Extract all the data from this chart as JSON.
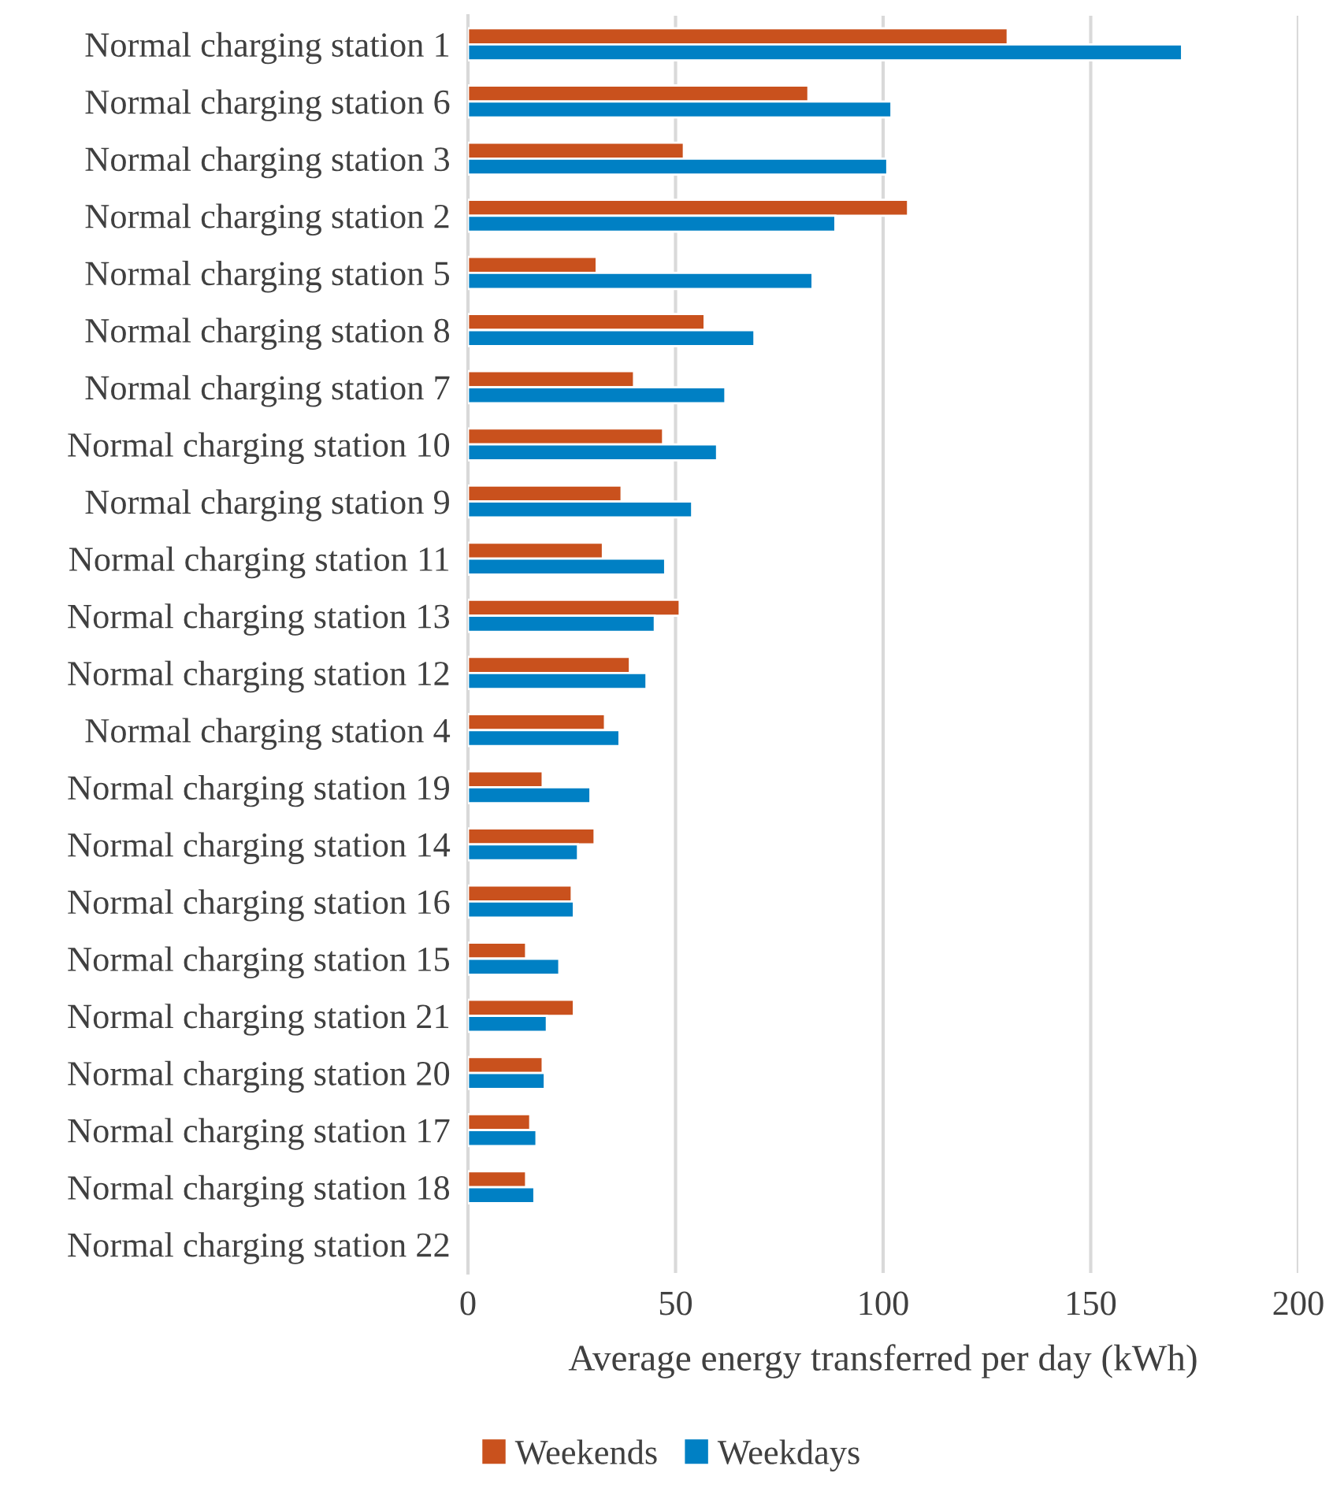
{
  "chart_data": {
    "type": "bar",
    "orientation": "horizontal",
    "xlabel": "Average energy transferred per day (kWh)",
    "categories": [
      "Normal charging station 1",
      "Normal charging station 6",
      "Normal charging station 3",
      "Normal charging station 2",
      "Normal charging station 5",
      "Normal charging station 8",
      "Normal charging station 7",
      "Normal charging station 10",
      "Normal charging station 9",
      "Normal charging station 11",
      "Normal charging station 13",
      "Normal charging station 12",
      "Normal charging station 4",
      "Normal charging station 19",
      "Normal charging station 14",
      "Normal charging station 16",
      "Normal charging station 15",
      "Normal charging station 21",
      "Normal charging station 20",
      "Normal charging station 17",
      "Normal charging station 18",
      "Normal charging station 22"
    ],
    "series": [
      {
        "name": "Weekends",
        "color": "#c9511d",
        "values": [
          130,
          82,
          52,
          106,
          31,
          57,
          40,
          47,
          37,
          32.5,
          51,
          39,
          33,
          18,
          30.5,
          25,
          14,
          25.5,
          18,
          15,
          14,
          null
        ]
      },
      {
        "name": "Weekdays",
        "color": "#0080c4",
        "values": [
          172,
          102,
          101,
          88.5,
          83,
          69,
          62,
          60,
          54,
          47.5,
          45,
          43,
          36.5,
          29.5,
          26.5,
          25.5,
          22,
          19,
          18.5,
          16.5,
          16,
          null
        ]
      }
    ],
    "xlim": [
      0,
      200
    ],
    "xticks": [
      0,
      50,
      100,
      150,
      200
    ],
    "grid": "x",
    "legend": "bottom"
  }
}
